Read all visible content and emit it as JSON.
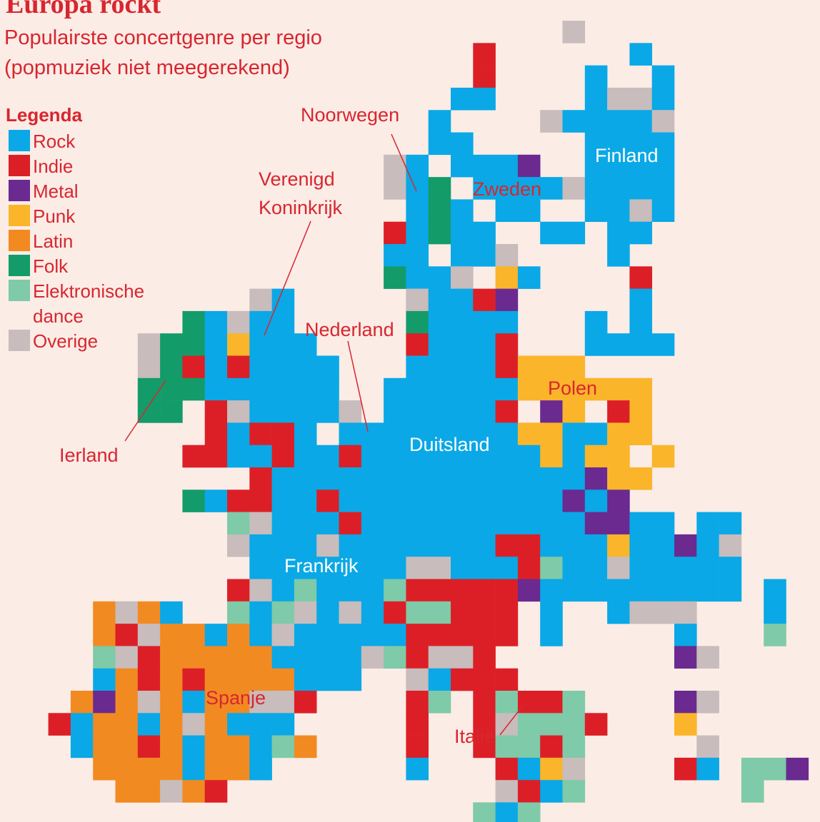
{
  "header": {
    "title": "Europa rockt",
    "subtitle_lines": [
      "Populairste concertgenre per regio",
      "(popmuziek niet meegerekend)"
    ]
  },
  "legend": {
    "title": "Legenda",
    "items": [
      {
        "label_lines": [
          "Rock"
        ],
        "color": "#0aa8e6"
      },
      {
        "label_lines": [
          "Indie"
        ],
        "color": "#dc1f26"
      },
      {
        "label_lines": [
          "Metal"
        ],
        "color": "#6a2a90"
      },
      {
        "label_lines": [
          "Punk"
        ],
        "color": "#fbb52b"
      },
      {
        "label_lines": [
          "Latin"
        ],
        "color": "#f28a22"
      },
      {
        "label_lines": [
          "Folk"
        ],
        "color": "#149b6a"
      },
      {
        "label_lines": [
          "Elektronische",
          "dance"
        ],
        "color": "#7fcaa8"
      },
      {
        "label_lines": [
          "Overige"
        ],
        "color": "#c8bcbc"
      }
    ]
  },
  "regions": [
    {
      "label": "Noorwegen"
    },
    {
      "label_lines": [
        "Verenigd",
        "Koninkrijk"
      ]
    },
    {
      "label": "Nederland"
    },
    {
      "label": "Ierland"
    },
    {
      "label": "Zweden"
    },
    {
      "label": "Finland"
    },
    {
      "label": "Polen"
    },
    {
      "label": "Duitsland"
    },
    {
      "label": "Frankrijk"
    },
    {
      "label": "Spanje"
    },
    {
      "label": "Italië"
    }
  ]
}
